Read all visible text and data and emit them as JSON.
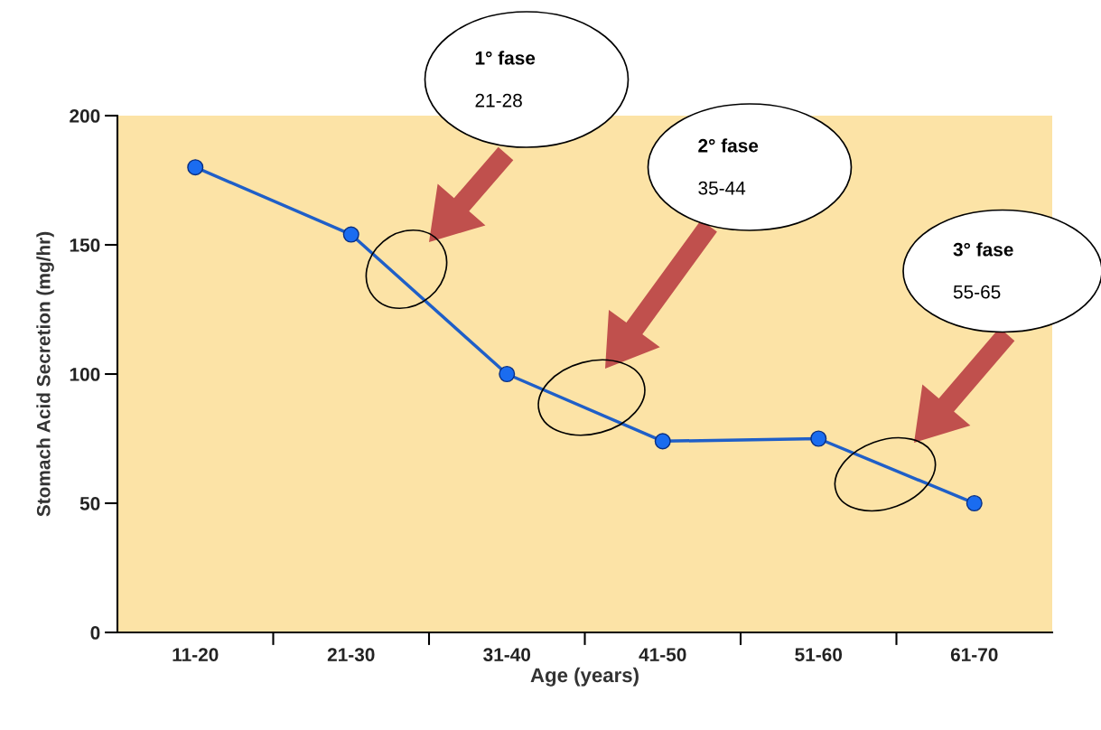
{
  "chart_data": {
    "type": "line",
    "xlabel": "Age (years)",
    "ylabel": "Stomach Acid Secretion (mg/hr)",
    "categories": [
      "11-20",
      "21-30",
      "31-40",
      "41-50",
      "51-60",
      "61-70"
    ],
    "series": [
      {
        "color": "#1f5fc8",
        "values": [
          180,
          154,
          100,
          74,
          75,
          50
        ]
      }
    ],
    "ylim": [
      0,
      200
    ],
    "yticks": [
      0,
      50,
      100,
      150,
      200
    ],
    "marker": "circle",
    "line_style": "solid",
    "grid": false,
    "legend": false,
    "annotations": [
      "1° fase\n21-28",
      "2° fase\n35-44",
      "3° fase\n55-65"
    ]
  }
}
